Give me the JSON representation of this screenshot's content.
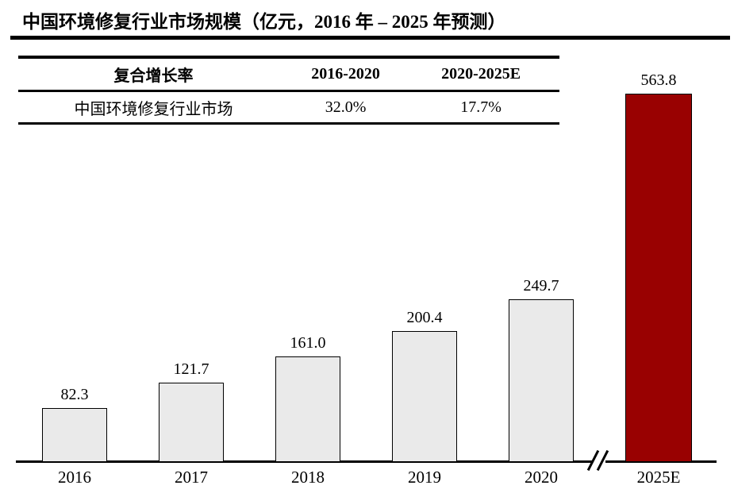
{
  "title": "中国环境修复行业市场规模（亿元，2016 年 – 2025 年预测）",
  "table": {
    "headers": [
      "复合增长率",
      "2016-2020",
      "2020-2025E"
    ],
    "rows": [
      [
        "中国环境修复行业市场",
        "32.0%",
        "17.7%"
      ]
    ]
  },
  "chart_data": {
    "type": "bar",
    "title": "中国环境修复行业市场规模（亿元，2016 年 – 2025 年预测）",
    "categories": [
      "2016",
      "2017",
      "2018",
      "2019",
      "2020",
      "2025E"
    ],
    "values": [
      82.3,
      121.7,
      161.0,
      200.4,
      249.7,
      563.8
    ],
    "value_labels": [
      "82.3",
      "121.7",
      "161.0",
      "200.4",
      "249.7",
      "563.8"
    ],
    "bar_colors": [
      "#eaeaea",
      "#eaeaea",
      "#eaeaea",
      "#eaeaea",
      "#eaeaea",
      "#990101"
    ],
    "highlight_category": "2025E",
    "xlabel": "",
    "ylabel": "亿元",
    "ylim": [
      0,
      600
    ],
    "grid": false,
    "legend": false,
    "axis_break_between": [
      "2020",
      "2025E"
    ],
    "annotations": {
      "cagr_2016_2020": "32.0%",
      "cagr_2020_2025E": "17.7%"
    }
  },
  "colors": {
    "background": "#ffffff",
    "text": "#000000",
    "bar_fill": "#eaeaea",
    "bar_border": "#000000",
    "highlight_fill": "#990101",
    "rule": "#000000"
  }
}
